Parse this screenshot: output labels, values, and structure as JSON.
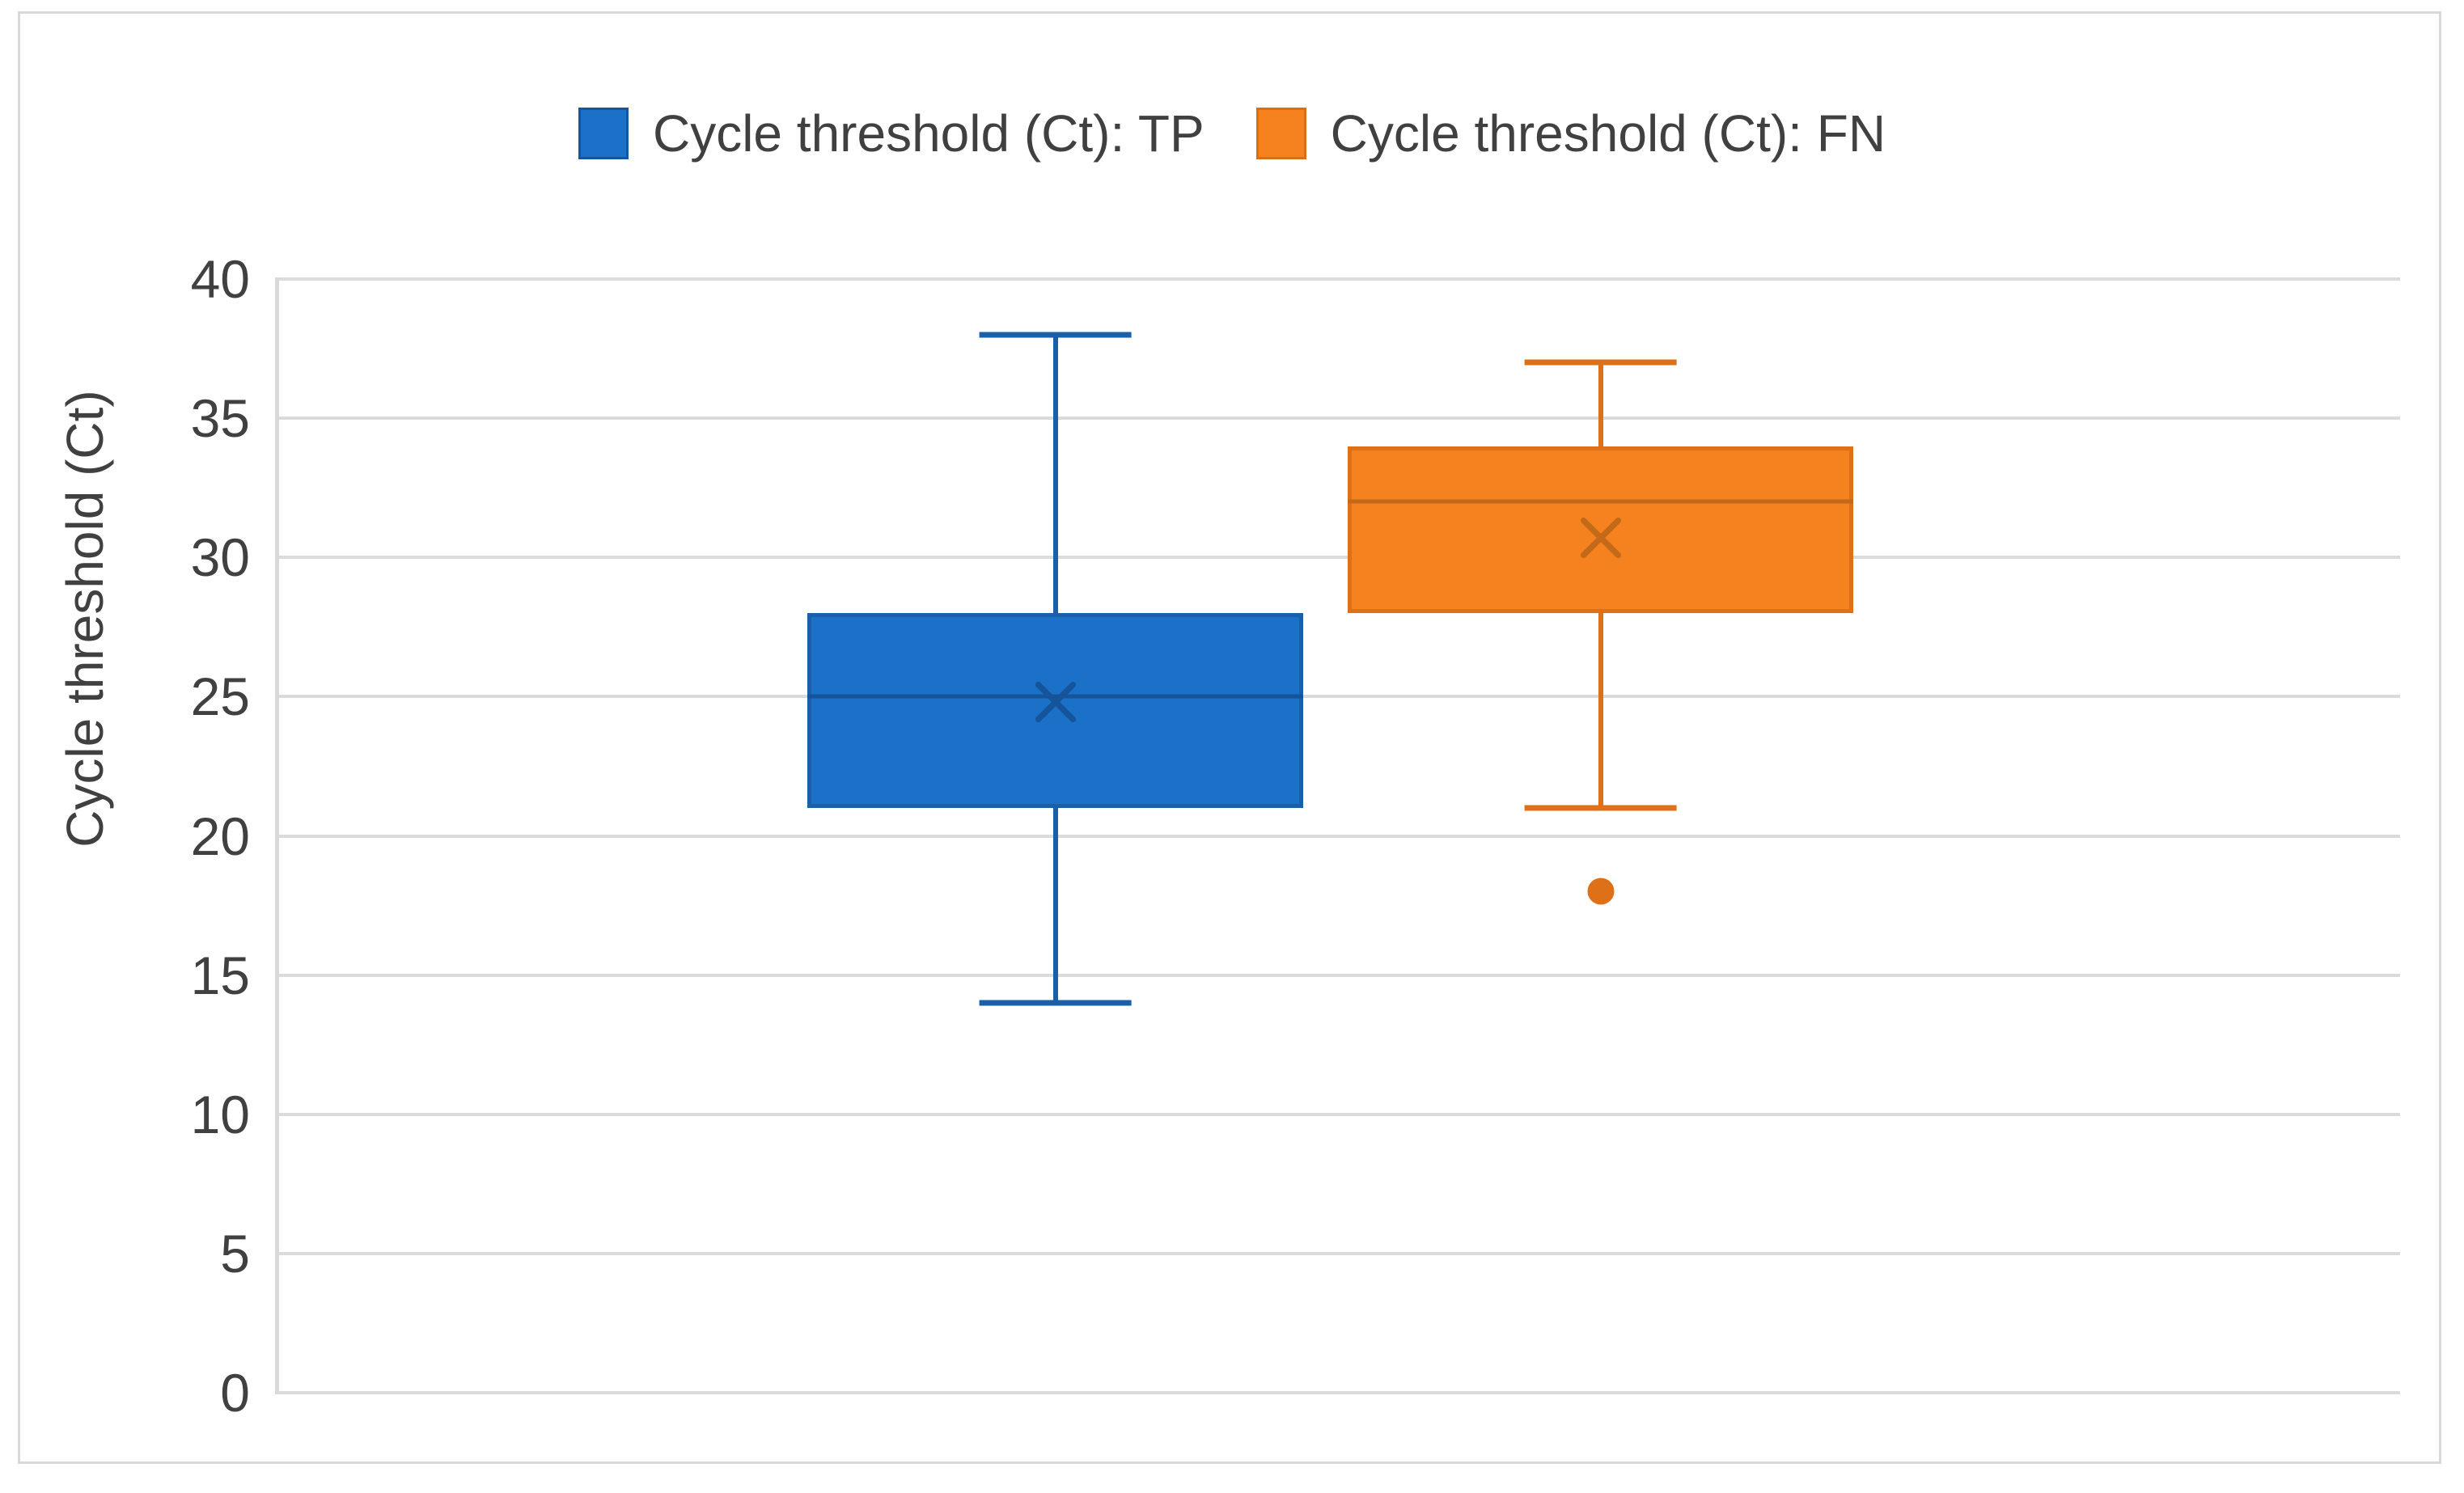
{
  "legend": {
    "items": [
      {
        "label": "Cycle threshold (Ct): TP",
        "color": "#1B70C7",
        "border": "#1456A0"
      },
      {
        "label": "Cycle threshold (Ct): FN",
        "color": "#F5821E",
        "border": "#D96F15"
      }
    ]
  },
  "y_axis": {
    "title": "Cycle threshold (Ct)"
  },
  "chart_data": {
    "type": "boxplot",
    "title": "",
    "ylabel": "Cycle threshold (Ct)",
    "ylim": [
      0,
      40
    ],
    "yticks": [
      0,
      5,
      10,
      15,
      20,
      25,
      30,
      35,
      40
    ],
    "grid": true,
    "legend_position": "top-center",
    "colors": {
      "gridline": "#DBDBDB",
      "axis_text": "#404040"
    },
    "series": [
      {
        "name": "Cycle threshold (Ct): TP",
        "min": 14,
        "q1": 21,
        "median": 25,
        "mean": 24.8,
        "q3": 28,
        "max": 38,
        "outliers": [],
        "fill": "#1B70C7",
        "line": "#1A5FA8",
        "dark": "#15549A",
        "center_pct": 36.6,
        "box_width_pct": 23.4,
        "cap_width_pct": 7.2
      },
      {
        "name": "Cycle threshold (Ct): FN",
        "min": 21,
        "q1": 28,
        "median": 32,
        "mean": 30.7,
        "q3": 34,
        "max": 37,
        "outliers": [
          18
        ],
        "fill": "#F5821E",
        "line": "#DE7118",
        "dark": "#C2691A",
        "center_pct": 62.3,
        "box_width_pct": 23.8,
        "cap_width_pct": 7.2
      }
    ]
  }
}
